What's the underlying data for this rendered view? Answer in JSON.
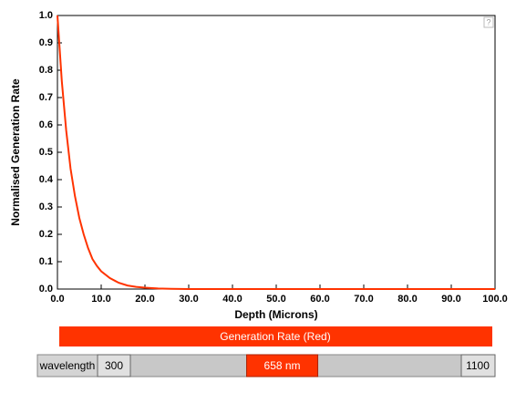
{
  "chart_data": {
    "type": "line",
    "xlabel": "Depth (Microns)",
    "ylabel": "Normalised Generation Rate",
    "help": "?",
    "x": [
      0,
      1,
      2,
      3,
      4,
      5,
      6,
      7,
      8,
      9,
      10,
      12,
      14,
      16,
      18,
      20,
      23,
      26,
      30,
      100
    ],
    "series": [
      {
        "name": "Generation Rate (Red)",
        "color": "#ff3300",
        "values": [
          1.0,
          0.76,
          0.58,
          0.44,
          0.34,
          0.26,
          0.2,
          0.15,
          0.11,
          0.085,
          0.065,
          0.04,
          0.023,
          0.013,
          0.008,
          0.005,
          0.002,
          0.001,
          0,
          0
        ]
      }
    ],
    "xlim": [
      0,
      100
    ],
    "ylim": [
      0,
      1
    ],
    "xticks": [
      {
        "value": 0,
        "label": "0.0"
      },
      {
        "value": 10,
        "label": "10.0"
      },
      {
        "value": 20,
        "label": "20.0"
      },
      {
        "value": 30,
        "label": "30.0"
      },
      {
        "value": 40,
        "label": "40.0"
      },
      {
        "value": 50,
        "label": "50.0"
      },
      {
        "value": 60,
        "label": "60.0"
      },
      {
        "value": 70,
        "label": "70.0"
      },
      {
        "value": 80,
        "label": "80.0"
      },
      {
        "value": 90,
        "label": "90.0"
      },
      {
        "value": 100,
        "label": "100.0"
      }
    ],
    "yticks": [
      {
        "value": 0,
        "label": "0.0"
      },
      0.1,
      0.2,
      0.3,
      0.4,
      0.5,
      0.6,
      0.7,
      0.8,
      0.9,
      {
        "value": 1,
        "label": "1.0"
      }
    ]
  },
  "slider": {
    "label": "wavelength",
    "min": 300,
    "max": 1100,
    "value": 658,
    "value_label": "658 nm"
  }
}
